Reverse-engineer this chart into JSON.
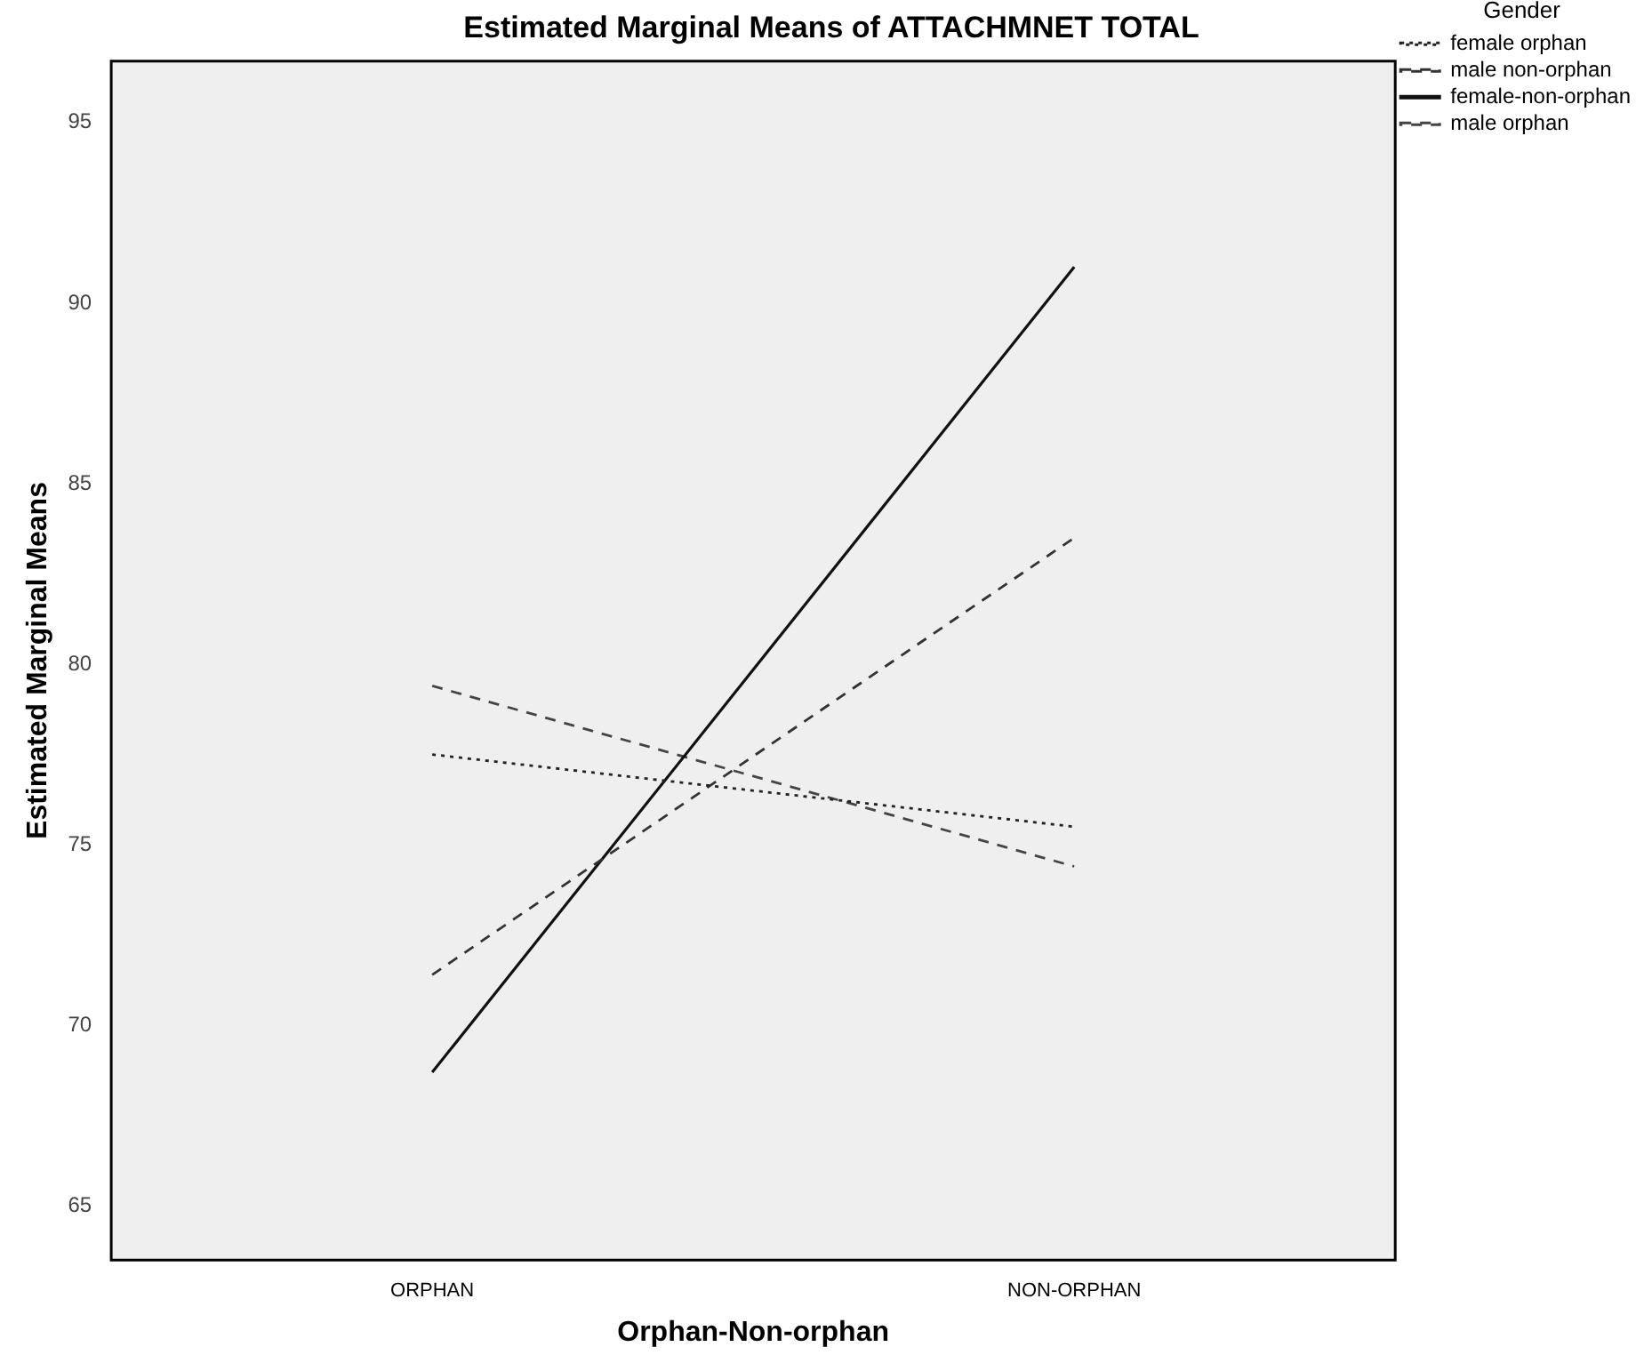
{
  "chart_data": {
    "type": "line",
    "title": "Estimated Marginal Means of ATTACHMNET TOTAL",
    "xlabel": "Orphan-Non-orphan",
    "ylabel": "Estimated Marginal Means",
    "legend_title": "Gender",
    "legend": "top right",
    "grid": false,
    "categories": [
      "ORPHAN",
      "NON-ORPHAN"
    ],
    "ylim": [
      63.5,
      96.7
    ],
    "yticks": [
      65,
      70,
      75,
      80,
      85,
      90,
      95
    ],
    "series": [
      {
        "name": "female orphan",
        "color": "#222222",
        "line_style": "dotted",
        "values": [
          77.5,
          75.5
        ]
      },
      {
        "name": "male non-orphan",
        "color": "#333333",
        "line_style": "dashed",
        "values": [
          71.4,
          83.5
        ]
      },
      {
        "name": "female-non-orphan",
        "color": "#111111",
        "line_style": "solid",
        "values": [
          68.7,
          91.0
        ]
      },
      {
        "name": "male orphan",
        "color": "#444444",
        "line_style": "dashed",
        "values": [
          79.4,
          74.4
        ]
      }
    ]
  }
}
